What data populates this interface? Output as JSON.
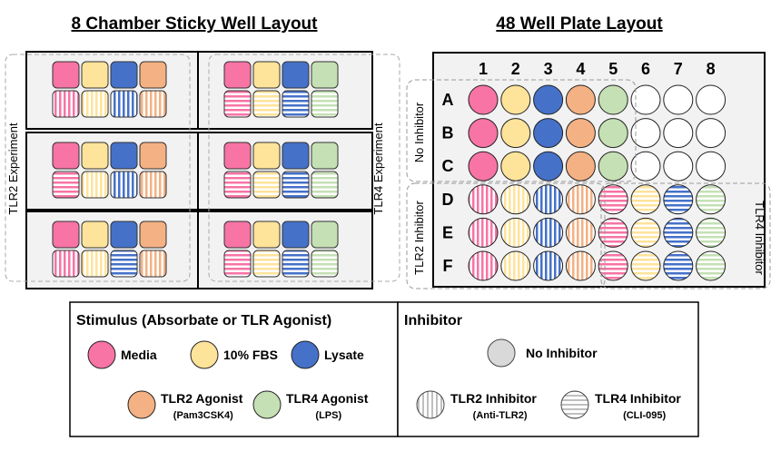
{
  "colors": {
    "media": "#f774a5",
    "fbs": "#fee39a",
    "lysate": "#4571c8",
    "tlr2_agonist": "#f4b183",
    "tlr4_agonist": "#c5e0b4",
    "no_inhibitor": "#d9d9d9",
    "stripe_light": "#ffffff",
    "chamber_bg": "#f2f2f2",
    "plate_bg": "#f2f2f2"
  },
  "chamber_layout": {
    "title": "8 Chamber Sticky Well Layout",
    "left_group_label": "TLR2 Experiment",
    "right_group_label": "TLR4 Experiment",
    "slides": [
      {
        "wells": [
          [
            "media",
            "none"
          ],
          [
            "fbs",
            "none"
          ],
          [
            "lysate",
            "none"
          ],
          [
            "tlr2_agonist",
            "none"
          ],
          [
            "media",
            "v"
          ],
          [
            "fbs",
            "v"
          ],
          [
            "lysate",
            "v"
          ],
          [
            "tlr2_agonist",
            "v"
          ]
        ]
      },
      {
        "wells": [
          [
            "media",
            "none"
          ],
          [
            "fbs",
            "none"
          ],
          [
            "lysate",
            "none"
          ],
          [
            "tlr4_agonist",
            "none"
          ],
          [
            "media",
            "h"
          ],
          [
            "fbs",
            "h"
          ],
          [
            "lysate",
            "h"
          ],
          [
            "tlr4_agonist",
            "h"
          ]
        ]
      },
      {
        "wells": [
          [
            "media",
            "none"
          ],
          [
            "fbs",
            "none"
          ],
          [
            "lysate",
            "none"
          ],
          [
            "tlr2_agonist",
            "none"
          ],
          [
            "media",
            "h"
          ],
          [
            "fbs",
            "v"
          ],
          [
            "lysate",
            "v"
          ],
          [
            "tlr2_agonist",
            "v"
          ]
        ]
      },
      {
        "wells": [
          [
            "media",
            "none"
          ],
          [
            "fbs",
            "none"
          ],
          [
            "lysate",
            "none"
          ],
          [
            "tlr4_agonist",
            "none"
          ],
          [
            "media",
            "h"
          ],
          [
            "fbs",
            "h"
          ],
          [
            "lysate",
            "h"
          ],
          [
            "tlr4_agonist",
            "h"
          ]
        ]
      },
      {
        "wells": [
          [
            "media",
            "none"
          ],
          [
            "fbs",
            "none"
          ],
          [
            "lysate",
            "none"
          ],
          [
            "tlr2_agonist",
            "none"
          ],
          [
            "media",
            "v"
          ],
          [
            "fbs",
            "v"
          ],
          [
            "lysate",
            "h"
          ],
          [
            "tlr2_agonist",
            "v"
          ]
        ]
      },
      {
        "wells": [
          [
            "media",
            "none"
          ],
          [
            "fbs",
            "none"
          ],
          [
            "lysate",
            "none"
          ],
          [
            "tlr4_agonist",
            "none"
          ],
          [
            "media",
            "h"
          ],
          [
            "fbs",
            "h"
          ],
          [
            "lysate",
            "h"
          ],
          [
            "tlr4_agonist",
            "h"
          ]
        ]
      }
    ]
  },
  "plate_layout": {
    "title": "48 Well Plate Layout",
    "columns": [
      "1",
      "2",
      "3",
      "4",
      "5",
      "6",
      "7",
      "8"
    ],
    "rows": [
      "A",
      "B",
      "C",
      "D",
      "E",
      "F"
    ],
    "group_labels": {
      "no_inhibitor": "No Inhibitor",
      "tlr2_inhibitor": "TLR2 Inhibitor",
      "tlr4_inhibitor": "TLR4 Inhibitor"
    },
    "wells": [
      [
        [
          "media",
          "none"
        ],
        [
          "fbs",
          "none"
        ],
        [
          "lysate",
          "none"
        ],
        [
          "tlr2_agonist",
          "none"
        ],
        [
          "tlr4_agonist",
          "none"
        ],
        [
          "empty",
          "none"
        ],
        [
          "empty",
          "none"
        ],
        [
          "empty",
          "none"
        ]
      ],
      [
        [
          "media",
          "none"
        ],
        [
          "fbs",
          "none"
        ],
        [
          "lysate",
          "none"
        ],
        [
          "tlr2_agonist",
          "none"
        ],
        [
          "tlr4_agonist",
          "none"
        ],
        [
          "empty",
          "none"
        ],
        [
          "empty",
          "none"
        ],
        [
          "empty",
          "none"
        ]
      ],
      [
        [
          "media",
          "none"
        ],
        [
          "fbs",
          "none"
        ],
        [
          "lysate",
          "none"
        ],
        [
          "tlr2_agonist",
          "none"
        ],
        [
          "tlr4_agonist",
          "none"
        ],
        [
          "empty",
          "none"
        ],
        [
          "empty",
          "none"
        ],
        [
          "empty",
          "none"
        ]
      ],
      [
        [
          "media",
          "v"
        ],
        [
          "fbs",
          "v"
        ],
        [
          "lysate",
          "v"
        ],
        [
          "tlr2_agonist",
          "v"
        ],
        [
          "media",
          "h"
        ],
        [
          "fbs",
          "h"
        ],
        [
          "lysate",
          "h"
        ],
        [
          "tlr4_agonist",
          "h"
        ]
      ],
      [
        [
          "media",
          "v"
        ],
        [
          "fbs",
          "v"
        ],
        [
          "lysate",
          "v"
        ],
        [
          "tlr2_agonist",
          "v"
        ],
        [
          "media",
          "h"
        ],
        [
          "fbs",
          "h"
        ],
        [
          "lysate",
          "h"
        ],
        [
          "tlr4_agonist",
          "h"
        ]
      ],
      [
        [
          "media",
          "v"
        ],
        [
          "fbs",
          "v"
        ],
        [
          "lysate",
          "v"
        ],
        [
          "tlr2_agonist",
          "v"
        ],
        [
          "media",
          "h"
        ],
        [
          "fbs",
          "h"
        ],
        [
          "lysate",
          "h"
        ],
        [
          "tlr4_agonist",
          "h"
        ]
      ]
    ]
  },
  "legend": {
    "stimulus_title": "Stimulus (Absorbate or TLR Agonist)",
    "inhibitor_title": "Inhibitor",
    "stimulus_items": [
      {
        "key": "media",
        "label": "Media",
        "sublabel": ""
      },
      {
        "key": "fbs",
        "label": "10% FBS",
        "sublabel": ""
      },
      {
        "key": "lysate",
        "label": "Lysate",
        "sublabel": ""
      },
      {
        "key": "tlr2_agonist",
        "label": "TLR2 Agonist",
        "sublabel": "(Pam3CSK4)"
      },
      {
        "key": "tlr4_agonist",
        "label": "TLR4 Agonist",
        "sublabel": "(LPS)"
      }
    ],
    "inhibitor_items": [
      {
        "key": "no_inhibitor",
        "pattern": "none",
        "label": "No Inhibitor",
        "sublabel": ""
      },
      {
        "key": "tlr2_inhibitor",
        "pattern": "v",
        "label": "TLR2 Inhibitor",
        "sublabel": "(Anti-TLR2)"
      },
      {
        "key": "tlr4_inhibitor",
        "pattern": "h",
        "label": "TLR4 Inhibitor",
        "sublabel": "(CLI-095)"
      }
    ]
  }
}
